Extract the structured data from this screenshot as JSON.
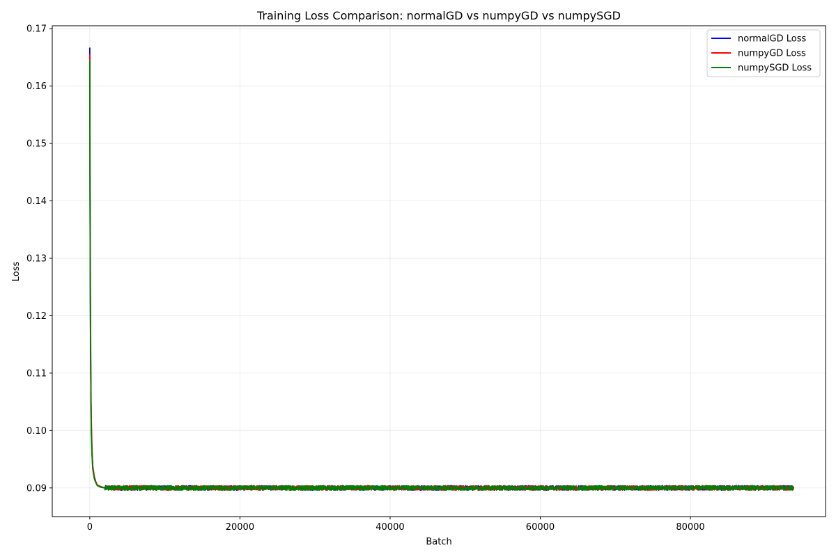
{
  "chart_data": {
    "type": "line",
    "title": "Training Loss Comparison: normalGD vs numpyGD vs numpySGD",
    "xlabel": "Batch",
    "ylabel": "Loss",
    "xlim": [
      -5000,
      98000
    ],
    "ylim": [
      0.085,
      0.1705
    ],
    "xticks": [
      0,
      20000,
      40000,
      60000,
      80000
    ],
    "xtick_labels": [
      "0",
      "20000",
      "40000",
      "60000",
      "80000"
    ],
    "yticks": [
      0.09,
      0.1,
      0.11,
      0.12,
      0.13,
      0.14,
      0.15,
      0.16,
      0.17
    ],
    "ytick_labels": [
      "0.09",
      "0.10",
      "0.11",
      "0.12",
      "0.13",
      "0.14",
      "0.15",
      "0.16",
      "0.17"
    ],
    "grid": true,
    "legend_position": "top-right",
    "series": [
      {
        "name": "normalGD Loss",
        "color": "#0000ff",
        "start_value": 0.1667,
        "plateau_value": 0.09,
        "noise_amplitude": 0.0004,
        "x": [
          0,
          20,
          50,
          100,
          150,
          200,
          300,
          400,
          600,
          800,
          1000,
          1500,
          2000,
          93750
        ],
        "y": [
          0.1667,
          0.15,
          0.13,
          0.115,
          0.106,
          0.1,
          0.096,
          0.0935,
          0.0918,
          0.091,
          0.0905,
          0.0902,
          0.09,
          0.09
        ]
      },
      {
        "name": "numpyGD Loss",
        "color": "#ff0000",
        "start_value": 0.1655,
        "plateau_value": 0.09,
        "noise_amplitude": 0.0004,
        "x": [
          0,
          20,
          50,
          100,
          150,
          200,
          300,
          400,
          600,
          800,
          1000,
          1500,
          2000,
          93750
        ],
        "y": [
          0.1655,
          0.148,
          0.138,
          0.12,
          0.108,
          0.102,
          0.0965,
          0.0938,
          0.092,
          0.0911,
          0.0905,
          0.0902,
          0.09,
          0.09
        ]
      },
      {
        "name": "numpySGD Loss",
        "color": "#008000",
        "start_value": 0.1645,
        "plateau_value": 0.09,
        "noise_amplitude": 0.0004,
        "x": [
          0,
          20,
          50,
          100,
          150,
          200,
          300,
          400,
          600,
          800,
          1000,
          1500,
          2000,
          93750
        ],
        "y": [
          0.1645,
          0.147,
          0.13,
          0.115,
          0.106,
          0.0995,
          0.0955,
          0.0932,
          0.0916,
          0.0909,
          0.0904,
          0.0901,
          0.09,
          0.09
        ]
      }
    ]
  }
}
